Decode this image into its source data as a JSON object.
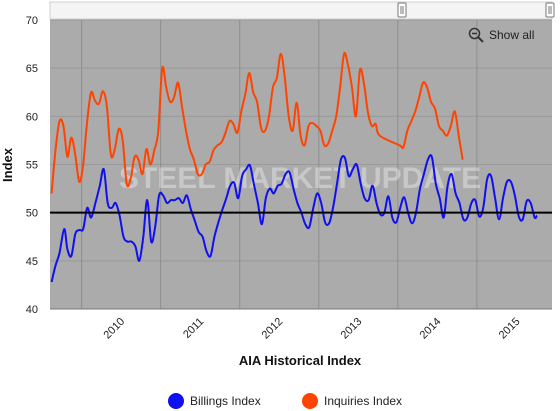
{
  "controls": {
    "show_all_label": "Show all",
    "zoom_icon": "zoom-out-icon"
  },
  "watermark": "STEEL MARKET UPDATE",
  "chart_data": {
    "type": "line",
    "xlabel": "AIA Historical Index",
    "ylabel": "Index",
    "ylim": [
      40,
      70
    ],
    "yticks": [
      40,
      45,
      50,
      55,
      60,
      65,
      70
    ],
    "xticks": [
      "2010",
      "2011",
      "2012",
      "2013",
      "2014",
      "2015"
    ],
    "xlim": [
      2009.6,
      2015.95
    ],
    "reference_line": 50,
    "grid": true,
    "legend_position": "bottom",
    "series": [
      {
        "name": "Billings Index",
        "color": "#1010ee",
        "points": [
          [
            2009.62,
            42.8
          ],
          [
            2009.67,
            44.5
          ],
          [
            2009.72,
            45.8
          ],
          [
            2009.78,
            48.3
          ],
          [
            2009.82,
            46.2
          ],
          [
            2009.87,
            45.5
          ],
          [
            2009.92,
            47.8
          ],
          [
            2009.97,
            48.2
          ],
          [
            2010.02,
            48.3
          ],
          [
            2010.07,
            50.5
          ],
          [
            2010.12,
            49.5
          ],
          [
            2010.18,
            51.2
          ],
          [
            2010.23,
            52.8
          ],
          [
            2010.28,
            54.5
          ],
          [
            2010.33,
            51.0
          ],
          [
            2010.38,
            50.5
          ],
          [
            2010.43,
            51.0
          ],
          [
            2010.48,
            49.7
          ],
          [
            2010.53,
            47.5
          ],
          [
            2010.58,
            47.0
          ],
          [
            2010.63,
            47.0
          ],
          [
            2010.68,
            46.5
          ],
          [
            2010.73,
            45.0
          ],
          [
            2010.78,
            47.5
          ],
          [
            2010.83,
            51.3
          ],
          [
            2010.88,
            47.0
          ],
          [
            2010.93,
            48.5
          ],
          [
            2010.98,
            51.8
          ],
          [
            2011.03,
            51.8
          ],
          [
            2011.08,
            51.0
          ],
          [
            2011.13,
            51.3
          ],
          [
            2011.18,
            51.3
          ],
          [
            2011.23,
            51.5
          ],
          [
            2011.28,
            51.0
          ],
          [
            2011.33,
            51.8
          ],
          [
            2011.38,
            50.4
          ],
          [
            2011.43,
            49.2
          ],
          [
            2011.48,
            48.0
          ],
          [
            2011.53,
            47.5
          ],
          [
            2011.58,
            46.0
          ],
          [
            2011.63,
            45.5
          ],
          [
            2011.68,
            47.5
          ],
          [
            2011.73,
            49.0
          ],
          [
            2011.78,
            50.3
          ],
          [
            2011.83,
            51.5
          ],
          [
            2011.88,
            52.8
          ],
          [
            2011.93,
            53.1
          ],
          [
            2011.98,
            51.5
          ],
          [
            2012.03,
            53.8
          ],
          [
            2012.08,
            54.5
          ],
          [
            2012.13,
            54.9
          ],
          [
            2012.18,
            52.9
          ],
          [
            2012.23,
            51.0
          ],
          [
            2012.28,
            48.8
          ],
          [
            2012.33,
            51.5
          ],
          [
            2012.38,
            52.5
          ],
          [
            2012.43,
            52.0
          ],
          [
            2012.48,
            52.8
          ],
          [
            2012.53,
            53.0
          ],
          [
            2012.58,
            54.0
          ],
          [
            2012.63,
            54.2
          ],
          [
            2012.68,
            52.5
          ],
          [
            2012.73,
            51.0
          ],
          [
            2012.78,
            50.0
          ],
          [
            2012.83,
            48.8
          ],
          [
            2012.88,
            48.5
          ],
          [
            2012.93,
            50.5
          ],
          [
            2012.98,
            52.0
          ],
          [
            2013.03,
            51.0
          ],
          [
            2013.08,
            49.0
          ],
          [
            2013.13,
            48.9
          ],
          [
            2013.18,
            50.5
          ],
          [
            2013.23,
            53.0
          ],
          [
            2013.28,
            55.5
          ],
          [
            2013.33,
            55.7
          ],
          [
            2013.38,
            53.8
          ],
          [
            2013.43,
            54.5
          ],
          [
            2013.48,
            55.0
          ],
          [
            2013.53,
            53.0
          ],
          [
            2013.58,
            51.5
          ],
          [
            2013.63,
            51.3
          ],
          [
            2013.68,
            52.8
          ],
          [
            2013.73,
            51.0
          ],
          [
            2013.78,
            49.8
          ],
          [
            2013.83,
            50.0
          ],
          [
            2013.88,
            51.7
          ],
          [
            2013.93,
            49.5
          ],
          [
            2013.98,
            49.0
          ],
          [
            2014.03,
            50.5
          ],
          [
            2014.08,
            51.6
          ],
          [
            2014.13,
            50.0
          ],
          [
            2014.18,
            48.9
          ],
          [
            2014.23,
            50.0
          ],
          [
            2014.28,
            52.5
          ],
          [
            2014.33,
            54.0
          ],
          [
            2014.38,
            55.5
          ],
          [
            2014.43,
            55.8
          ],
          [
            2014.48,
            53.0
          ],
          [
            2014.53,
            51.5
          ],
          [
            2014.58,
            49.5
          ],
          [
            2014.63,
            52.8
          ],
          [
            2014.68,
            54.0
          ],
          [
            2014.73,
            52.0
          ],
          [
            2014.78,
            51.0
          ],
          [
            2014.83,
            49.3
          ],
          [
            2014.88,
            49.5
          ],
          [
            2014.93,
            51.0
          ],
          [
            2014.98,
            51.3
          ],
          [
            2015.03,
            49.6
          ],
          [
            2015.08,
            50.5
          ],
          [
            2015.13,
            53.5
          ],
          [
            2015.18,
            53.8
          ],
          [
            2015.23,
            51.5
          ],
          [
            2015.28,
            49.3
          ],
          [
            2015.33,
            51.5
          ],
          [
            2015.38,
            53.2
          ],
          [
            2015.43,
            53.2
          ],
          [
            2015.48,
            51.8
          ],
          [
            2015.53,
            49.6
          ],
          [
            2015.58,
            49.3
          ],
          [
            2015.63,
            51.2
          ],
          [
            2015.68,
            51.0
          ],
          [
            2015.73,
            49.5
          ],
          [
            2015.76,
            49.7
          ]
        ]
      },
      {
        "name": "Inquiries Index",
        "color": "#ff4400",
        "points": [
          [
            2009.62,
            52.0
          ],
          [
            2009.67,
            56.5
          ],
          [
            2009.72,
            59.5
          ],
          [
            2009.77,
            59.0
          ],
          [
            2009.82,
            55.8
          ],
          [
            2009.87,
            57.8
          ],
          [
            2009.92,
            56.0
          ],
          [
            2009.97,
            53.2
          ],
          [
            2010.02,
            55.0
          ],
          [
            2010.07,
            59.5
          ],
          [
            2010.12,
            62.5
          ],
          [
            2010.17,
            61.6
          ],
          [
            2010.22,
            61.3
          ],
          [
            2010.27,
            62.6
          ],
          [
            2010.32,
            61.0
          ],
          [
            2010.37,
            56.0
          ],
          [
            2010.42,
            56.6
          ],
          [
            2010.47,
            58.7
          ],
          [
            2010.52,
            57.5
          ],
          [
            2010.57,
            53.0
          ],
          [
            2010.62,
            53.5
          ],
          [
            2010.67,
            55.8
          ],
          [
            2010.72,
            55.5
          ],
          [
            2010.77,
            54.0
          ],
          [
            2010.82,
            56.6
          ],
          [
            2010.87,
            55.0
          ],
          [
            2010.92,
            56.5
          ],
          [
            2010.97,
            58.5
          ],
          [
            2011.02,
            65.0
          ],
          [
            2011.07,
            63.0
          ],
          [
            2011.12,
            61.5
          ],
          [
            2011.17,
            62.0
          ],
          [
            2011.22,
            63.5
          ],
          [
            2011.27,
            61.0
          ],
          [
            2011.32,
            58.5
          ],
          [
            2011.37,
            56.6
          ],
          [
            2011.42,
            55.5
          ],
          [
            2011.47,
            54.0
          ],
          [
            2011.52,
            54.0
          ],
          [
            2011.57,
            55.0
          ],
          [
            2011.62,
            55.3
          ],
          [
            2011.67,
            56.5
          ],
          [
            2011.72,
            57.0
          ],
          [
            2011.77,
            57.3
          ],
          [
            2011.82,
            58.3
          ],
          [
            2011.87,
            59.5
          ],
          [
            2011.92,
            59.2
          ],
          [
            2011.97,
            58.3
          ],
          [
            2012.02,
            60.5
          ],
          [
            2012.07,
            62.3
          ],
          [
            2012.12,
            64.5
          ],
          [
            2012.17,
            62.5
          ],
          [
            2012.22,
            61.5
          ],
          [
            2012.27,
            58.8
          ],
          [
            2012.32,
            58.5
          ],
          [
            2012.37,
            60.0
          ],
          [
            2012.42,
            63.0
          ],
          [
            2012.47,
            64.0
          ],
          [
            2012.52,
            66.5
          ],
          [
            2012.57,
            64.0
          ],
          [
            2012.62,
            60.0
          ],
          [
            2012.67,
            58.5
          ],
          [
            2012.72,
            61.4
          ],
          [
            2012.77,
            58.0
          ],
          [
            2012.82,
            57.0
          ],
          [
            2012.87,
            59.0
          ],
          [
            2012.92,
            59.3
          ],
          [
            2012.97,
            59.0
          ],
          [
            2013.02,
            58.5
          ],
          [
            2013.07,
            57.0
          ],
          [
            2013.12,
            57.2
          ],
          [
            2013.17,
            58.5
          ],
          [
            2013.22,
            60.0
          ],
          [
            2013.27,
            63.0
          ],
          [
            2013.32,
            66.5
          ],
          [
            2013.37,
            65.3
          ],
          [
            2013.42,
            63.0
          ],
          [
            2013.47,
            60.0
          ],
          [
            2013.52,
            64.8
          ],
          [
            2013.57,
            63.5
          ],
          [
            2013.62,
            60.5
          ],
          [
            2013.67,
            59.0
          ],
          [
            2013.72,
            59.2
          ],
          [
            2013.77,
            58.0
          ],
          [
            2014.02,
            57.0
          ],
          [
            2014.07,
            56.8
          ],
          [
            2014.12,
            58.5
          ],
          [
            2014.17,
            59.5
          ],
          [
            2014.22,
            60.5
          ],
          [
            2014.27,
            62.0
          ],
          [
            2014.32,
            63.5
          ],
          [
            2014.37,
            63.0
          ],
          [
            2014.42,
            61.5
          ],
          [
            2014.47,
            60.8
          ],
          [
            2014.52,
            59.0
          ],
          [
            2014.57,
            58.5
          ],
          [
            2014.62,
            58.0
          ],
          [
            2014.67,
            59.0
          ],
          [
            2014.72,
            60.5
          ],
          [
            2014.77,
            58.0
          ],
          [
            2014.82,
            55.5
          ]
        ]
      }
    ]
  },
  "legend": [
    {
      "label": "Billings Index",
      "color": "#1010ee"
    },
    {
      "label": "Inquiries Index",
      "color": "#ff4400"
    }
  ]
}
